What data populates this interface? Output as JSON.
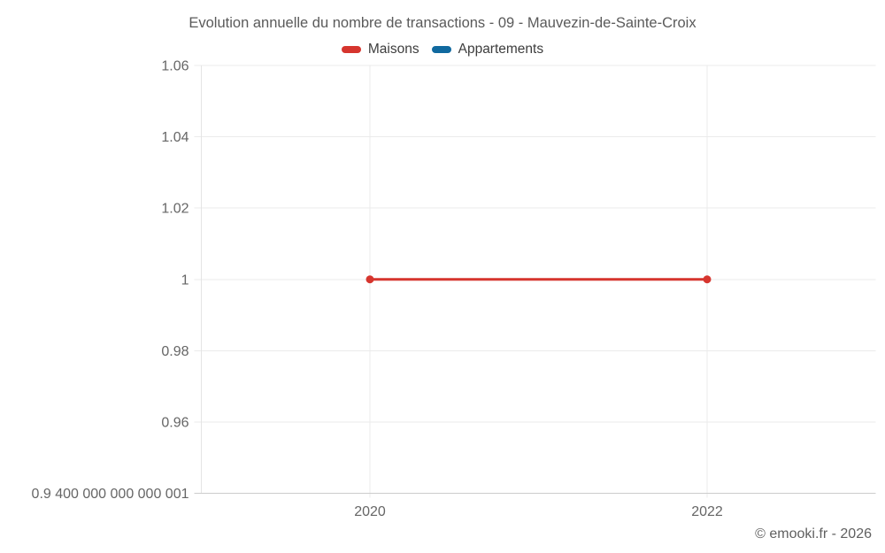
{
  "chart_data": {
    "type": "line",
    "title": "Evolution annuelle du nombre de transactions - 09 - Mauvezin-de-Sainte-Croix",
    "xlabel": "",
    "ylabel": "",
    "legend_position": "top",
    "grid": true,
    "xlim": [
      2019,
      2023
    ],
    "ylim": [
      0.9400000000000001,
      1.06
    ],
    "xticks": [
      {
        "value": 2020,
        "label": "2020"
      },
      {
        "value": 2022,
        "label": "2022"
      }
    ],
    "yticks": [
      {
        "value": 1.06,
        "label": "1.06"
      },
      {
        "value": 1.04,
        "label": "1.04"
      },
      {
        "value": 1.02,
        "label": "1.02"
      },
      {
        "value": 1,
        "label": "1"
      },
      {
        "value": 0.98,
        "label": "0.98"
      },
      {
        "value": 0.96,
        "label": "0.96"
      },
      {
        "value": 0.9400000000000001,
        "label": "0.9 400 000 000 000 001"
      }
    ],
    "series": [
      {
        "name": "Maisons",
        "color": "#d6352e",
        "points": [
          [
            2020,
            1
          ],
          [
            2022,
            1
          ]
        ]
      },
      {
        "name": "Appartements",
        "color": "#10699f",
        "points": []
      }
    ]
  },
  "footer": {
    "copyright": "© emooki.fr - 2026"
  }
}
